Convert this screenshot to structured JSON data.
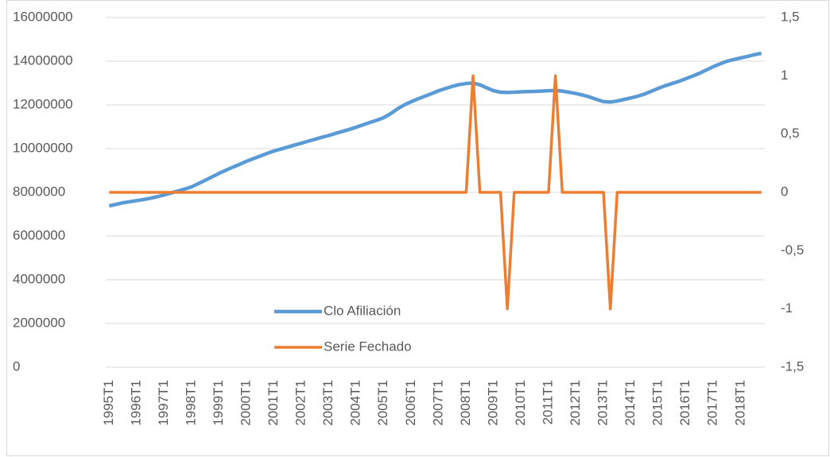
{
  "chart_data": {
    "type": "line",
    "categories": [
      "1995T1",
      null,
      null,
      null,
      "1996T1",
      null,
      null,
      null,
      "1997T1",
      null,
      null,
      null,
      "1998T1",
      null,
      null,
      null,
      "1999T1",
      null,
      null,
      null,
      "2000T1",
      null,
      null,
      null,
      "2001T1",
      null,
      null,
      null,
      "2002T1",
      null,
      null,
      null,
      "2003T1",
      null,
      null,
      null,
      "2004T1",
      null,
      null,
      null,
      "2005T1",
      null,
      null,
      null,
      "2006T1",
      null,
      null,
      null,
      "2007T1",
      null,
      null,
      null,
      "2008T1",
      null,
      null,
      null,
      "2009T1",
      null,
      null,
      null,
      "2010T1",
      null,
      null,
      null,
      "2011T1",
      null,
      null,
      null,
      "2012T1",
      null,
      null,
      null,
      "2013T1",
      null,
      null,
      null,
      "2014T1",
      null,
      null,
      null,
      "2015T1",
      null,
      null,
      null,
      "2016T1",
      null,
      null,
      null,
      "2017T1",
      null,
      null,
      null,
      "2018T1",
      null,
      null,
      null
    ],
    "series": [
      {
        "name": "Clo Afiliación",
        "color": "#5b9bd5",
        "values": [
          7380000,
          7450000,
          7520000,
          7570000,
          7620000,
          7670000,
          7730000,
          7800000,
          7880000,
          7970000,
          8060000,
          8150000,
          8250000,
          8400000,
          8550000,
          8710000,
          8870000,
          9010000,
          9150000,
          9280000,
          9420000,
          9540000,
          9660000,
          9780000,
          9890000,
          9980000,
          10070000,
          10160000,
          10250000,
          10340000,
          10430000,
          10520000,
          10600000,
          10700000,
          10790000,
          10880000,
          10980000,
          11090000,
          11200000,
          11300000,
          11420000,
          11600000,
          11820000,
          12000000,
          12150000,
          12280000,
          12400000,
          12520000,
          12650000,
          12750000,
          12850000,
          12930000,
          12980000,
          13000000,
          12920000,
          12780000,
          12650000,
          12580000,
          12570000,
          12580000,
          12600000,
          12610000,
          12620000,
          12630000,
          12650000,
          12660000,
          12630000,
          12580000,
          12520000,
          12450000,
          12360000,
          12250000,
          12150000,
          12130000,
          12180000,
          12250000,
          12320000,
          12400000,
          12500000,
          12630000,
          12760000,
          12880000,
          12980000,
          13080000,
          13200000,
          13320000,
          13450000,
          13600000,
          13750000,
          13880000,
          14000000,
          14080000,
          14150000,
          14220000,
          14300000,
          14360000
        ]
      },
      {
        "name": "Serie Fechado",
        "color": "#ed7d31",
        "axis": "y2",
        "values": [
          0,
          0,
          0,
          0,
          0,
          0,
          0,
          0,
          0,
          0,
          0,
          0,
          0,
          0,
          0,
          0,
          0,
          0,
          0,
          0,
          0,
          0,
          0,
          0,
          0,
          0,
          0,
          0,
          0,
          0,
          0,
          0,
          0,
          0,
          0,
          0,
          0,
          0,
          0,
          0,
          0,
          0,
          0,
          0,
          0,
          0,
          0,
          0,
          0,
          0,
          0,
          0,
          0,
          1,
          0,
          0,
          0,
          0,
          -1,
          0,
          0,
          0,
          0,
          0,
          0,
          1,
          0,
          0,
          0,
          0,
          0,
          0,
          0,
          -1,
          0,
          0,
          0,
          0,
          0,
          0,
          0,
          0,
          0,
          0,
          0,
          0,
          0,
          0,
          0,
          0,
          0,
          0,
          0,
          0,
          0,
          0
        ]
      }
    ],
    "ylim": [
      0,
      16000000
    ],
    "yticks": [
      0,
      2000000,
      4000000,
      6000000,
      8000000,
      10000000,
      12000000,
      14000000,
      16000000
    ],
    "y2lim": [
      -1.5,
      1.5
    ],
    "y2ticks": [
      {
        "value": -1.5,
        "label": "-1,5"
      },
      -1,
      {
        "value": -0.5,
        "label": "-0,5"
      },
      0,
      {
        "value": 0.5,
        "label": "0,5"
      },
      1,
      {
        "value": 1.5,
        "label": "1,5"
      }
    ],
    "grid": true,
    "legend": "lower left"
  }
}
